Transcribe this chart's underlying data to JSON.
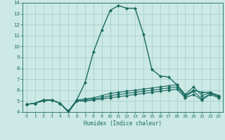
{
  "xlabel": "Humidex (Indice chaleur)",
  "xlim": [
    -0.5,
    23.5
  ],
  "ylim": [
    4,
    14
  ],
  "xticks": [
    0,
    1,
    2,
    3,
    4,
    5,
    6,
    7,
    8,
    9,
    10,
    11,
    12,
    13,
    14,
    15,
    16,
    17,
    18,
    19,
    20,
    21,
    22,
    23
  ],
  "yticks": [
    4,
    5,
    6,
    7,
    8,
    9,
    10,
    11,
    12,
    13,
    14
  ],
  "bg_color": "#cce9e5",
  "line_color": "#1a6b60",
  "grid_color": "#a0ccc8",
  "series": [
    {
      "x": [
        0,
        1,
        2,
        3,
        4,
        5,
        6,
        7,
        8,
        9,
        10,
        11,
        12,
        13,
        14,
        15,
        16,
        17,
        18,
        19,
        20,
        21,
        22,
        23
      ],
      "y": [
        4.7,
        4.8,
        5.1,
        5.1,
        4.8,
        4.0,
        5.1,
        6.7,
        9.5,
        11.5,
        13.3,
        13.75,
        13.5,
        13.5,
        11.1,
        7.9,
        7.3,
        7.2,
        6.5,
        5.5,
        6.0,
        5.8,
        5.8,
        5.5
      ]
    },
    {
      "x": [
        0,
        1,
        2,
        3,
        4,
        5,
        6,
        7,
        8,
        9,
        10,
        11,
        12,
        13,
        14,
        15,
        16,
        17,
        18,
        19,
        20,
        21,
        22,
        23
      ],
      "y": [
        4.7,
        4.8,
        5.1,
        5.1,
        4.8,
        4.1,
        5.1,
        5.2,
        5.3,
        5.5,
        5.7,
        5.8,
        5.9,
        6.0,
        6.1,
        6.2,
        6.3,
        6.4,
        6.5,
        5.6,
        6.3,
        5.5,
        5.8,
        5.5
      ]
    },
    {
      "x": [
        0,
        1,
        2,
        3,
        4,
        5,
        6,
        7,
        8,
        9,
        10,
        11,
        12,
        13,
        14,
        15,
        16,
        17,
        18,
        19,
        20,
        21,
        22,
        23
      ],
      "y": [
        4.7,
        4.8,
        5.1,
        5.1,
        4.8,
        4.0,
        5.0,
        5.1,
        5.2,
        5.3,
        5.5,
        5.6,
        5.7,
        5.8,
        5.9,
        6.0,
        6.1,
        6.2,
        6.3,
        5.4,
        5.9,
        5.2,
        5.7,
        5.4
      ]
    },
    {
      "x": [
        0,
        1,
        2,
        3,
        4,
        5,
        6,
        7,
        8,
        9,
        10,
        11,
        12,
        13,
        14,
        15,
        16,
        17,
        18,
        19,
        20,
        21,
        22,
        23
      ],
      "y": [
        4.7,
        4.8,
        5.0,
        5.1,
        4.8,
        4.0,
        5.0,
        5.0,
        5.1,
        5.2,
        5.3,
        5.4,
        5.5,
        5.6,
        5.7,
        5.8,
        5.9,
        6.0,
        6.1,
        5.3,
        5.6,
        5.1,
        5.6,
        5.3
      ]
    }
  ]
}
